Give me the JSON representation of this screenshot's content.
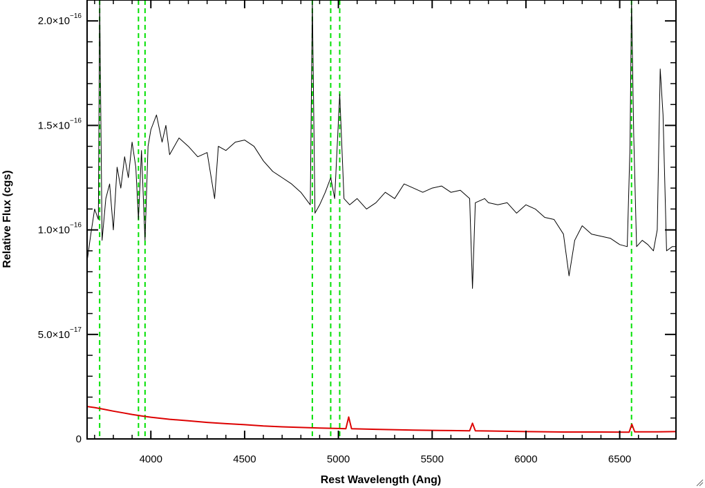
{
  "chart_data": {
    "type": "line",
    "xlabel": "Rest Wavelength (Ang)",
    "ylabel": "Relative Flux (cgs)",
    "xlim": [
      3660,
      6800
    ],
    "ylim": [
      0,
      2.1e-16
    ],
    "grid": false,
    "x_ticks": [
      {
        "value": 4000,
        "label": "4000"
      },
      {
        "value": 4500,
        "label": "4500"
      },
      {
        "value": 5000,
        "label": "5000"
      },
      {
        "value": 5500,
        "label": "5500"
      },
      {
        "value": 6000,
        "label": "6000"
      },
      {
        "value": 6500,
        "label": "6500"
      }
    ],
    "y_ticks": [
      {
        "value": 0,
        "mantissa": "0",
        "exponent": ""
      },
      {
        "value": 5e-17,
        "mantissa": "5.0×10",
        "exponent": "−17"
      },
      {
        "value": 1e-16,
        "mantissa": "1.0×10",
        "exponent": "−16"
      },
      {
        "value": 1.5e-16,
        "mantissa": "1.5×10",
        "exponent": "−16"
      },
      {
        "value": 2e-16,
        "mantissa": "2.0×10",
        "exponent": "−16"
      }
    ],
    "reference_lines": {
      "color": "#00e000",
      "style": "dashed",
      "x": [
        3727,
        3934,
        3969,
        4861,
        4959,
        5007,
        6563
      ]
    },
    "series": [
      {
        "color": "#000000",
        "style": "solid",
        "points": [
          [
            3660,
            8.5e-17
          ],
          [
            3680,
            9.8e-17
          ],
          [
            3700,
            1.1e-16
          ],
          [
            3720,
            1.05e-16
          ],
          [
            3727,
            2.1e-16
          ],
          [
            3740,
            9.5e-17
          ],
          [
            3760,
            1.15e-16
          ],
          [
            3780,
            1.22e-16
          ],
          [
            3800,
            1e-16
          ],
          [
            3820,
            1.3e-16
          ],
          [
            3840,
            1.2e-16
          ],
          [
            3860,
            1.35e-16
          ],
          [
            3880,
            1.25e-16
          ],
          [
            3900,
            1.42e-16
          ],
          [
            3920,
            1.3e-16
          ],
          [
            3934,
            1.05e-16
          ],
          [
            3950,
            1.38e-16
          ],
          [
            3969,
            9.5e-17
          ],
          [
            3985,
            1.4e-16
          ],
          [
            4000,
            1.48e-16
          ],
          [
            4030,
            1.55e-16
          ],
          [
            4060,
            1.42e-16
          ],
          [
            4080,
            1.5e-16
          ],
          [
            4100,
            1.36e-16
          ],
          [
            4150,
            1.44e-16
          ],
          [
            4200,
            1.4e-16
          ],
          [
            4250,
            1.35e-16
          ],
          [
            4300,
            1.37e-16
          ],
          [
            4340,
            1.15e-16
          ],
          [
            4360,
            1.4e-16
          ],
          [
            4400,
            1.38e-16
          ],
          [
            4450,
            1.42e-16
          ],
          [
            4500,
            1.43e-16
          ],
          [
            4550,
            1.4e-16
          ],
          [
            4600,
            1.33e-16
          ],
          [
            4650,
            1.28e-16
          ],
          [
            4700,
            1.25e-16
          ],
          [
            4750,
            1.22e-16
          ],
          [
            4800,
            1.18e-16
          ],
          [
            4850,
            1.12e-16
          ],
          [
            4861,
            2.1e-16
          ],
          [
            4875,
            1.08e-16
          ],
          [
            4900,
            1.12e-16
          ],
          [
            4930,
            1.18e-16
          ],
          [
            4959,
            1.25e-16
          ],
          [
            4980,
            1.15e-16
          ],
          [
            5007,
            1.65e-16
          ],
          [
            5030,
            1.15e-16
          ],
          [
            5060,
            1.12e-16
          ],
          [
            5100,
            1.15e-16
          ],
          [
            5150,
            1.1e-16
          ],
          [
            5200,
            1.13e-16
          ],
          [
            5250,
            1.18e-16
          ],
          [
            5300,
            1.15e-16
          ],
          [
            5350,
            1.22e-16
          ],
          [
            5400,
            1.2e-16
          ],
          [
            5450,
            1.18e-16
          ],
          [
            5500,
            1.2e-16
          ],
          [
            5550,
            1.21e-16
          ],
          [
            5600,
            1.18e-16
          ],
          [
            5650,
            1.19e-16
          ],
          [
            5700,
            1.15e-16
          ],
          [
            5715,
            7.2e-17
          ],
          [
            5730,
            1.13e-16
          ],
          [
            5780,
            1.15e-16
          ],
          [
            5800,
            1.13e-16
          ],
          [
            5850,
            1.12e-16
          ],
          [
            5900,
            1.13e-16
          ],
          [
            5950,
            1.08e-16
          ],
          [
            6000,
            1.12e-16
          ],
          [
            6050,
            1.1e-16
          ],
          [
            6100,
            1.06e-16
          ],
          [
            6150,
            1.05e-16
          ],
          [
            6200,
            9.8e-17
          ],
          [
            6230,
            7.8e-17
          ],
          [
            6260,
            9.5e-17
          ],
          [
            6300,
            1.02e-16
          ],
          [
            6350,
            9.8e-17
          ],
          [
            6400,
            9.7e-17
          ],
          [
            6450,
            9.6e-17
          ],
          [
            6500,
            9.3e-17
          ],
          [
            6540,
            9.2e-17
          ],
          [
            6555,
            1.4e-16
          ],
          [
            6563,
            2.1e-16
          ],
          [
            6575,
            1.45e-16
          ],
          [
            6590,
            9.2e-17
          ],
          [
            6620,
            9.5e-17
          ],
          [
            6650,
            9.3e-17
          ],
          [
            6680,
            9e-17
          ],
          [
            6700,
            1e-16
          ],
          [
            6716,
            1.77e-16
          ],
          [
            6731,
            1.55e-16
          ],
          [
            6750,
            9e-17
          ],
          [
            6780,
            9.2e-17
          ],
          [
            6800,
            9.2e-17
          ]
        ]
      },
      {
        "color": "#dd0000",
        "style": "solid",
        "points": [
          [
            3660,
            1.55e-17
          ],
          [
            3700,
            1.5e-17
          ],
          [
            3750,
            1.42e-17
          ],
          [
            3800,
            1.33e-17
          ],
          [
            3850,
            1.25e-17
          ],
          [
            3900,
            1.17e-17
          ],
          [
            3950,
            1.1e-17
          ],
          [
            4000,
            1.04e-17
          ],
          [
            4100,
            9.4e-18
          ],
          [
            4200,
            8.7e-18
          ],
          [
            4300,
            7.9e-18
          ],
          [
            4400,
            7.3e-18
          ],
          [
            4500,
            6.8e-18
          ],
          [
            4600,
            6.2e-18
          ],
          [
            4700,
            5.8e-18
          ],
          [
            4800,
            5.5e-18
          ],
          [
            4900,
            5.2e-18
          ],
          [
            5000,
            5e-18
          ],
          [
            5040,
            4.9e-18
          ],
          [
            5055,
            1.05e-17
          ],
          [
            5070,
            4.9e-18
          ],
          [
            5200,
            4.6e-18
          ],
          [
            5400,
            4.2e-18
          ],
          [
            5600,
            4e-18
          ],
          [
            5700,
            3.9e-18
          ],
          [
            5715,
            7.5e-18
          ],
          [
            5730,
            3.9e-18
          ],
          [
            5800,
            3.8e-18
          ],
          [
            6000,
            3.5e-18
          ],
          [
            6200,
            3.3e-18
          ],
          [
            6400,
            3.3e-18
          ],
          [
            6550,
            3.2e-18
          ],
          [
            6565,
            7e-18
          ],
          [
            6580,
            3.4e-18
          ],
          [
            6700,
            3.4e-18
          ],
          [
            6800,
            3.5e-18
          ]
        ]
      }
    ]
  }
}
